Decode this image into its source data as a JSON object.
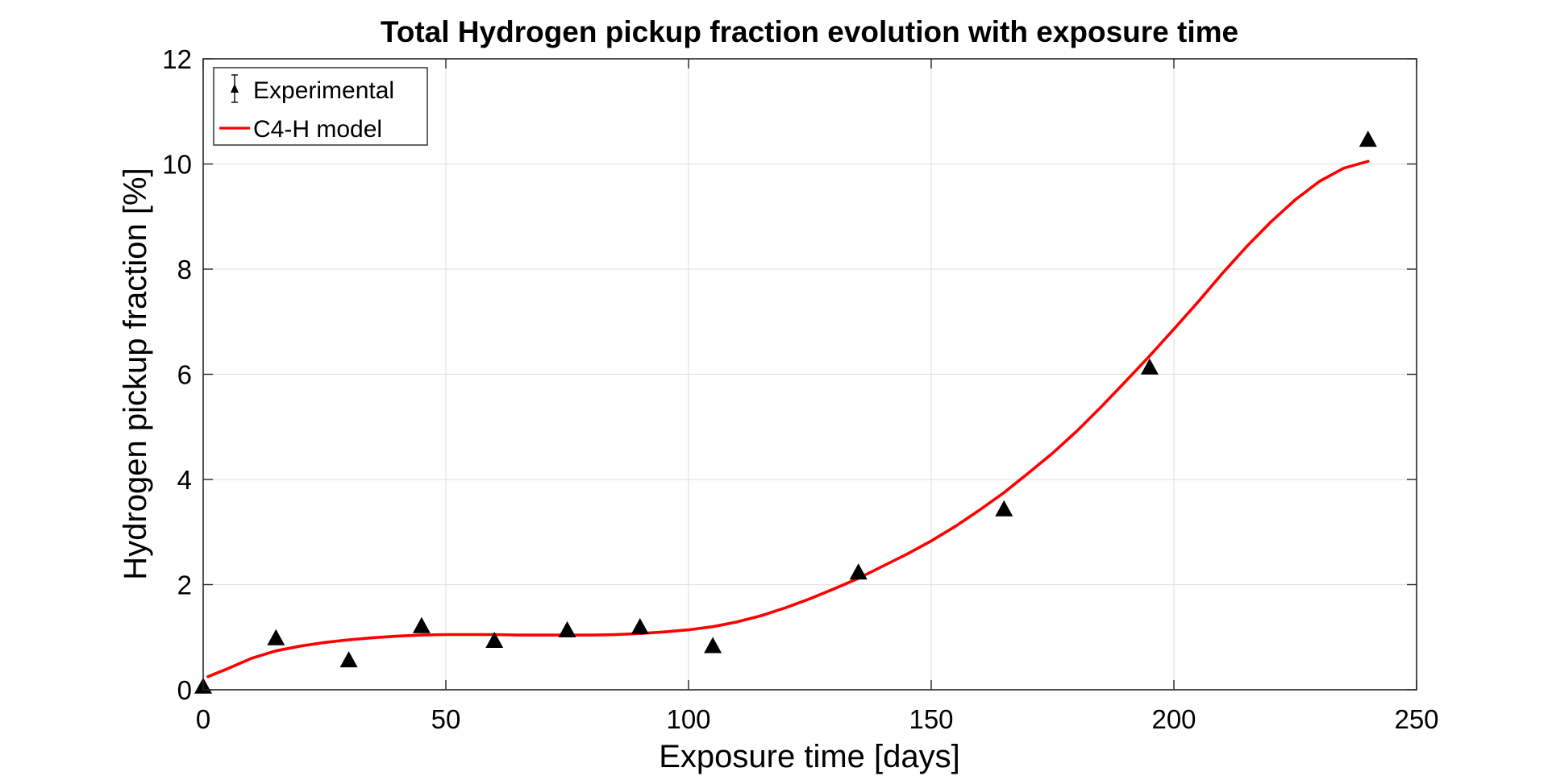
{
  "chart_data": {
    "type": "scatter",
    "title": "Total Hydrogen pickup fraction evolution with exposure time",
    "xlabel": "Exposure time [days]",
    "ylabel": "Hydrogen pickup fraction [%]",
    "xlim": [
      0,
      250
    ],
    "ylim": [
      0,
      12
    ],
    "xticks": [
      0,
      50,
      100,
      150,
      200,
      250
    ],
    "yticks": [
      0,
      2,
      4,
      6,
      8,
      10,
      12
    ],
    "grid": true,
    "legend_position": "top-left",
    "series": [
      {
        "name": "Experimental",
        "type": "scatter",
        "marker": "triangle",
        "color": "#000000",
        "x": [
          0,
          15,
          30,
          45,
          60,
          75,
          90,
          105,
          135,
          165,
          195,
          240
        ],
        "y": [
          0.05,
          0.97,
          0.55,
          1.2,
          0.92,
          1.12,
          1.18,
          0.82,
          2.22,
          3.42,
          6.12,
          10.45
        ]
      },
      {
        "name": "C4-H model",
        "type": "line",
        "color": "#ff0000",
        "x": [
          1,
          5,
          10,
          15,
          20,
          25,
          30,
          35,
          40,
          45,
          50,
          55,
          60,
          65,
          70,
          75,
          80,
          85,
          90,
          95,
          100,
          105,
          110,
          115,
          120,
          125,
          130,
          135,
          140,
          145,
          150,
          155,
          160,
          165,
          170,
          175,
          180,
          185,
          190,
          195,
          200,
          205,
          210,
          215,
          220,
          225,
          230,
          235,
          240
        ],
        "y": [
          0.25,
          0.4,
          0.6,
          0.74,
          0.83,
          0.9,
          0.95,
          0.99,
          1.02,
          1.04,
          1.05,
          1.05,
          1.05,
          1.04,
          1.04,
          1.04,
          1.04,
          1.05,
          1.07,
          1.1,
          1.14,
          1.2,
          1.29,
          1.41,
          1.56,
          1.73,
          1.92,
          2.12,
          2.35,
          2.58,
          2.83,
          3.11,
          3.42,
          3.75,
          4.12,
          4.5,
          4.92,
          5.38,
          5.86,
          6.35,
          6.86,
          7.38,
          7.92,
          8.43,
          8.9,
          9.32,
          9.67,
          9.92,
          10.05
        ]
      }
    ]
  }
}
